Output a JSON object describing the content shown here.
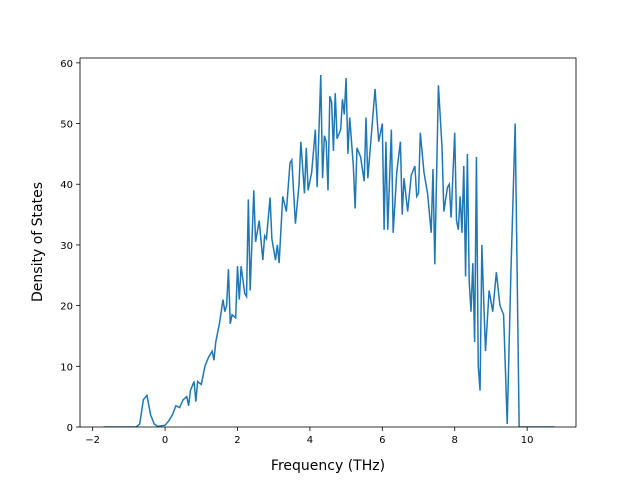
{
  "chart_data": {
    "type": "line",
    "xlabel": "Frequency (THz)",
    "ylabel": "Density of States",
    "xlim": [
      -2.35,
      11.35
    ],
    "ylim": [
      0,
      60.8
    ],
    "xticks": [
      {
        "value": -2,
        "label": "−2"
      },
      0,
      2,
      4,
      6,
      8,
      10
    ],
    "yticks": [
      0,
      10,
      20,
      30,
      40,
      50,
      60
    ],
    "x": [
      -1.7,
      -0.8,
      -0.7,
      -0.6,
      -0.5,
      -0.4,
      -0.3,
      -0.2,
      0,
      0.1,
      0.2,
      0.3,
      0.4,
      0.5,
      0.6,
      0.65,
      0.7,
      0.8,
      0.85,
      0.9,
      1.0,
      1.1,
      1.2,
      1.3,
      1.35,
      1.4,
      1.5,
      1.6,
      1.65,
      1.7,
      1.75,
      1.8,
      1.85,
      1.95,
      2.0,
      2.05,
      2.1,
      2.2,
      2.25,
      2.3,
      2.35,
      2.45,
      2.5,
      2.6,
      2.7,
      2.75,
      2.8,
      2.9,
      2.95,
      3.05,
      3.1,
      3.15,
      3.25,
      3.35,
      3.45,
      3.5,
      3.6,
      3.7,
      3.75,
      3.85,
      3.9,
      3.95,
      4.05,
      4.15,
      4.2,
      4.3,
      4.35,
      4.4,
      4.45,
      4.5,
      4.55,
      4.6,
      4.65,
      4.7,
      4.75,
      4.85,
      4.9,
      4.95,
      5.0,
      5.05,
      5.1,
      5.2,
      5.25,
      5.3,
      5.4,
      5.5,
      5.55,
      5.6,
      5.8,
      5.9,
      6.0,
      6.05,
      6.1,
      6.15,
      6.25,
      6.3,
      6.4,
      6.5,
      6.55,
      6.6,
      6.7,
      6.8,
      6.9,
      6.95,
      7.0,
      7.05,
      7.15,
      7.25,
      7.35,
      7.4,
      7.45,
      7.55,
      7.65,
      7.7,
      7.8,
      7.85,
      7.9,
      8.0,
      8.05,
      8.1,
      8.15,
      8.2,
      8.25,
      8.3,
      8.35,
      8.4,
      8.45,
      8.5,
      8.55,
      8.6,
      8.65,
      8.7,
      8.75,
      8.8,
      8.85,
      8.95,
      9.05,
      9.15,
      9.25,
      9.35,
      9.45,
      9.55,
      9.67,
      9.78,
      10.75
    ],
    "series": [
      {
        "color": "#1f77b4",
        "values": [
          0,
          0,
          0.5,
          4.5,
          5.2,
          2,
          0.5,
          0.1,
          0.3,
          1,
          2,
          3.5,
          3.2,
          4.5,
          5,
          3.5,
          6,
          7.5,
          4.2,
          7.5,
          7,
          10,
          11.5,
          12.5,
          11,
          14,
          17,
          21,
          19,
          20,
          26,
          17,
          18.5,
          18,
          26.5,
          21,
          26.5,
          22,
          21.5,
          37.5,
          22.5,
          39,
          30.5,
          34,
          27.5,
          31.5,
          31,
          37.8,
          31,
          27.5,
          30,
          27,
          38,
          35.5,
          43.5,
          44,
          33.5,
          40,
          47,
          38.5,
          46,
          39,
          42,
          49,
          39.5,
          58,
          41,
          48,
          47,
          39,
          54.5,
          53.5,
          45.5,
          55,
          47.5,
          49,
          54,
          51.5,
          57.5,
          45,
          51,
          43,
          36,
          46,
          44.5,
          40.5,
          51,
          41,
          55.7,
          47,
          50,
          32.5,
          47,
          32.5,
          49,
          32,
          42,
          47,
          35,
          41,
          35.5,
          41.5,
          43,
          38,
          38.5,
          48.5,
          42,
          38.5,
          32,
          42.5,
          26.8,
          56.3,
          46,
          35.5,
          39.5,
          40,
          34.5,
          48.5,
          34,
          32.5,
          38,
          32,
          43,
          24.8,
          45,
          24,
          19,
          27,
          14,
          44.5,
          10,
          6,
          30,
          21,
          12.5,
          22.5,
          19,
          25.5,
          20,
          18.5,
          0.5,
          25,
          50,
          0,
          0
        ]
      }
    ]
  }
}
